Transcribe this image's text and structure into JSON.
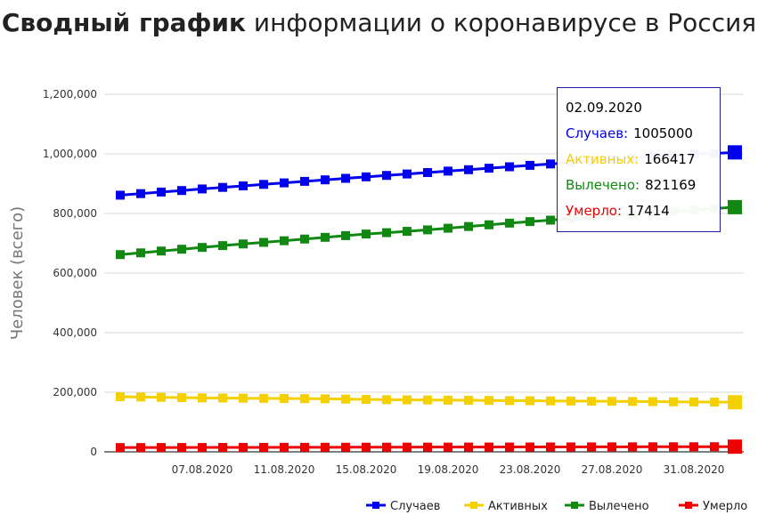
{
  "title": {
    "bold": "Сводный график",
    "rest": " информации о коронавирусе в Россия"
  },
  "colors": {
    "cases": "#0000ee",
    "active": "#f5d000",
    "recovered": "#118811",
    "deaths": "#ee0000",
    "grid": "#d9d9d9"
  },
  "chart_data": {
    "type": "line",
    "ylabel": "Человек (всего)",
    "ylim": [
      0,
      1200000
    ],
    "yticks": [
      0,
      200000,
      400000,
      600000,
      800000,
      1000000,
      1200000
    ],
    "ytick_labels": [
      "0",
      "200,000",
      "400,000",
      "600,000",
      "800,000",
      "1,000,000",
      "1,200,000"
    ],
    "x": [
      "03.08.2020",
      "04.08.2020",
      "05.08.2020",
      "06.08.2020",
      "07.08.2020",
      "08.08.2020",
      "09.08.2020",
      "10.08.2020",
      "11.08.2020",
      "12.08.2020",
      "13.08.2020",
      "14.08.2020",
      "15.08.2020",
      "16.08.2020",
      "17.08.2020",
      "18.08.2020",
      "19.08.2020",
      "20.08.2020",
      "21.08.2020",
      "22.08.2020",
      "23.08.2020",
      "24.08.2020",
      "25.08.2020",
      "26.08.2020",
      "27.08.2020",
      "28.08.2020",
      "29.08.2020",
      "30.08.2020",
      "31.08.2020",
      "01.09.2020",
      "02.09.2020"
    ],
    "xtick_labels": [
      "07.08.2020",
      "11.08.2020",
      "15.08.2020",
      "19.08.2020",
      "23.08.2020",
      "27.08.2020",
      "31.08.2020"
    ],
    "legend_position": "bottom-right",
    "series": [
      {
        "name": "Случаев",
        "key": "cases",
        "values": [
          861400,
          866600,
          871900,
          877000,
          882300,
          887500,
          892600,
          897600,
          902700,
          907800,
          912800,
          917900,
          922900,
          927700,
          932500,
          937300,
          942100,
          946900,
          951900,
          956700,
          961500,
          966200,
          970900,
          975600,
          980400,
          985300,
          990300,
          995300,
          1000000,
          1001500,
          1005000
        ]
      },
      {
        "name": "Активных",
        "key": "active",
        "values": [
          185000,
          184000,
          183000,
          182000,
          181000,
          180500,
          180000,
          179500,
          179000,
          178500,
          178000,
          177000,
          176000,
          175000,
          174500,
          174000,
          173500,
          173000,
          172500,
          172000,
          171500,
          171000,
          170500,
          170000,
          169500,
          169000,
          168500,
          168000,
          167500,
          167000,
          166417
        ]
      },
      {
        "name": "Вылечено",
        "key": "recovered",
        "values": [
          662000,
          667800,
          673900,
          680000,
          686100,
          692200,
          697700,
          703000,
          708500,
          714200,
          719900,
          725600,
          731000,
          735600,
          740000,
          745000,
          750500,
          756300,
          762000,
          767600,
          772700,
          777600,
          782500,
          787400,
          792400,
          797500,
          802500,
          807200,
          811900,
          816400,
          821169
        ]
      },
      {
        "name": "Умерло",
        "key": "deaths",
        "values": [
          14400,
          14500,
          14600,
          14700,
          14800,
          14900,
          15000,
          15100,
          15200,
          15300,
          15400,
          15500,
          15600,
          15700,
          15800,
          15900,
          16000,
          16100,
          16200,
          16300,
          16400,
          16500,
          16600,
          16700,
          16800,
          16900,
          17000,
          17100,
          17200,
          17300,
          17414
        ]
      }
    ]
  },
  "tooltip": {
    "date": "02.09.2020",
    "rows": [
      {
        "label": "Случаев:",
        "value": "1005000",
        "key": "cases"
      },
      {
        "label": "Активных:",
        "value": "166417",
        "key": "active"
      },
      {
        "label": "Вылечено:",
        "value": "821169",
        "key": "recovered"
      },
      {
        "label": "Умерло:",
        "value": "17414",
        "key": "deaths"
      }
    ]
  }
}
